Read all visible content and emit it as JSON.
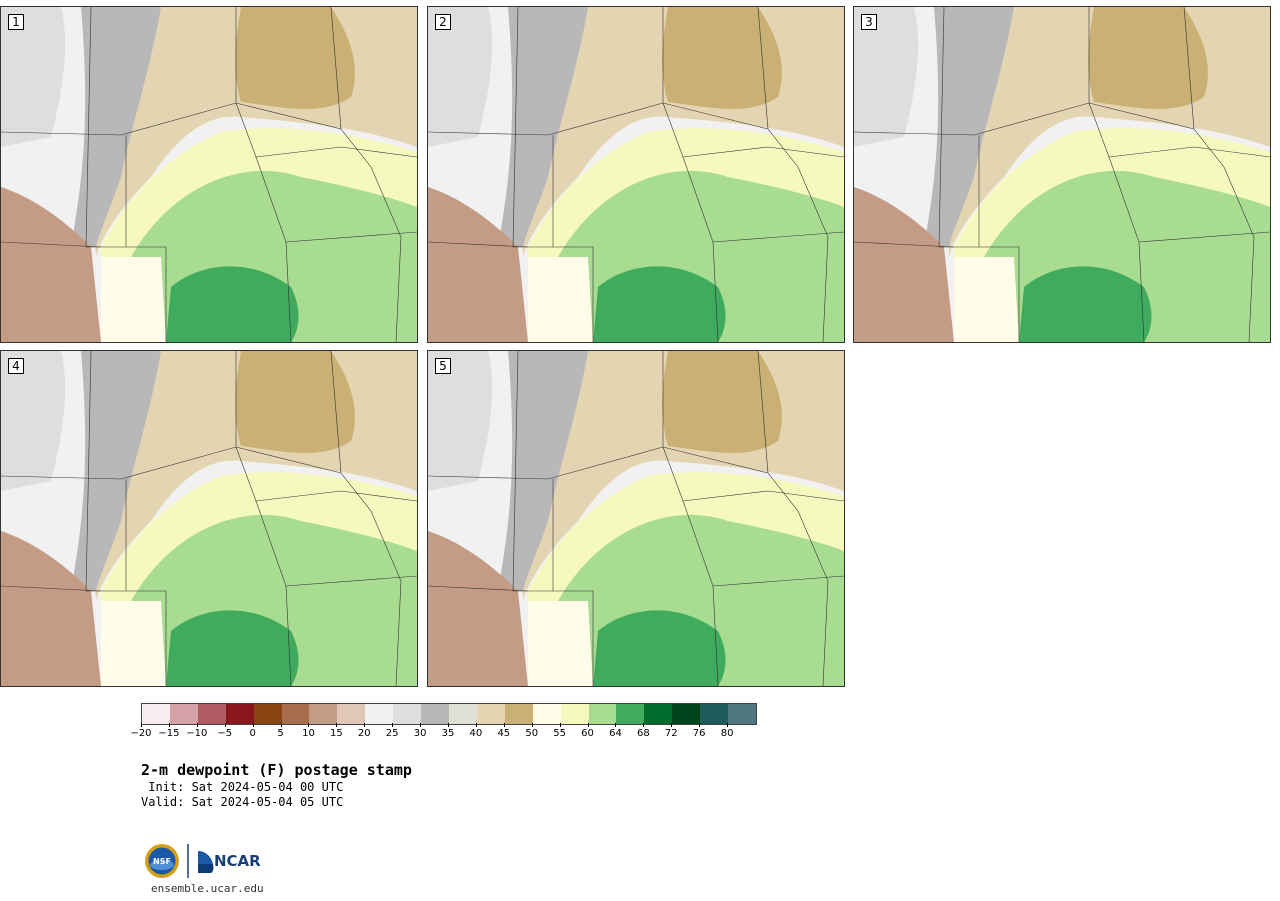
{
  "panels": [
    {
      "label": "1"
    },
    {
      "label": "2"
    },
    {
      "label": "3"
    },
    {
      "label": "4"
    },
    {
      "label": "5"
    }
  ],
  "colorbar": {
    "colors": [
      "#f6eeee",
      "#d6a1a6",
      "#b05a62",
      "#8a161d",
      "#8a4313",
      "#a86e4c",
      "#c49b85",
      "#e1c7b8",
      "#f1f1f1",
      "#dedede",
      "#b8b8b8",
      "#e1e0d7",
      "#e3d5b2",
      "#cab074",
      "#fffde9",
      "#f6f9bd",
      "#a8dc90",
      "#41ab5d",
      "#006d2c",
      "#00441b",
      "#1d5b5d",
      "#4e7a7f"
    ],
    "tick_labels": [
      "−20",
      "−15",
      "−10",
      "−5",
      "0",
      "5",
      "10",
      "15",
      "20",
      "25",
      "30",
      "35",
      "40",
      "45",
      "50",
      "55",
      "60",
      "64",
      "68",
      "72",
      "76",
      "80"
    ]
  },
  "title": "2-m dewpoint (F) postage stamp",
  "init": " Init: Sat 2024-05-04 00 UTC",
  "valid": "Valid: Sat 2024-05-04 05 UTC",
  "logo": {
    "left_text": "NSF",
    "right_text": "NCAR"
  },
  "site": "ensemble.ucar.edu"
}
